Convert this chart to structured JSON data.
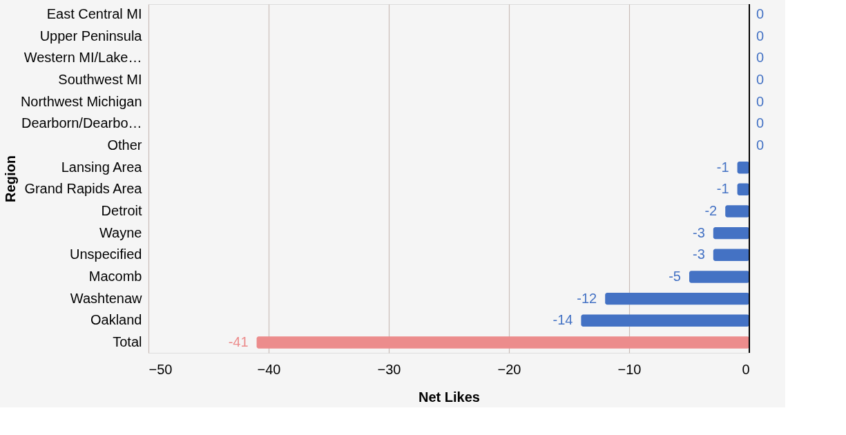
{
  "chart_data": {
    "type": "bar",
    "orientation": "horizontal",
    "xlabel": "Net Likes",
    "ylabel": "Region",
    "categories": [
      "East Central MI",
      "Upper Peninsula",
      "Western MI/Lake…",
      "Southwest MI",
      "Northwest Michigan",
      "Dearborn/Dearbo…",
      "Other",
      "Lansing Area",
      "Grand Rapids Area",
      "Detroit",
      "Wayne",
      "Unspecified",
      "Macomb",
      "Washtenaw",
      "Oakland",
      "Total"
    ],
    "values": [
      0,
      0,
      0,
      0,
      0,
      0,
      0,
      -1,
      -1,
      -2,
      -3,
      -3,
      -5,
      -12,
      -14,
      -41
    ],
    "colors": [
      "#4472c4",
      "#4472c4",
      "#4472c4",
      "#4472c4",
      "#4472c4",
      "#4472c4",
      "#4472c4",
      "#4472c4",
      "#4472c4",
      "#4472c4",
      "#4472c4",
      "#4472c4",
      "#4472c4",
      "#4472c4",
      "#4472c4",
      "#ec8c8c"
    ],
    "xlim": [
      -50,
      0
    ],
    "xticks": [
      -50,
      -40,
      -30,
      -20,
      -10,
      0
    ],
    "grid": "x",
    "data_labels": true,
    "legend": false,
    "ref_lines": [
      {
        "axis": "x",
        "value": 0,
        "color": "#000000"
      }
    ]
  }
}
